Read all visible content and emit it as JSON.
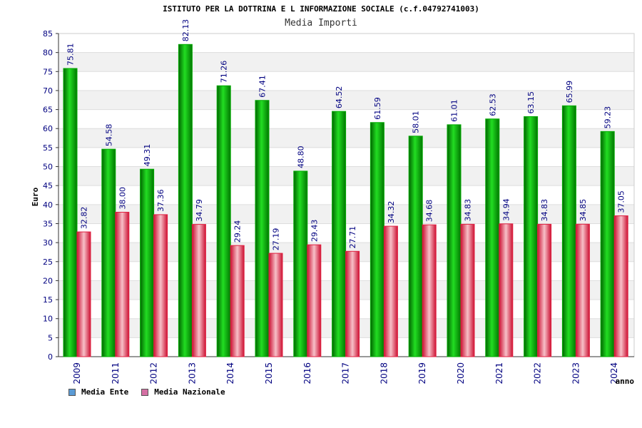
{
  "chart_data": {
    "type": "bar",
    "title": "ISTITUTO PER LA DOTTRINA E L INFORMAZIONE SOCIALE (c.f.04792741003)",
    "subtitle": "Media Importi",
    "xlabel": "anno",
    "ylabel": "Euro",
    "ylim": [
      0,
      85
    ],
    "yticks": [
      0,
      5,
      10,
      15,
      20,
      25,
      30,
      35,
      40,
      45,
      50,
      55,
      60,
      65,
      70,
      75,
      80,
      85
    ],
    "categories": [
      "2009",
      "2011",
      "2012",
      "2013",
      "2014",
      "2015",
      "2016",
      "2017",
      "2018",
      "2019",
      "2020",
      "2021",
      "2022",
      "2023",
      "2024"
    ],
    "series": [
      {
        "name": "Media Ente",
        "color": "#00aa00",
        "legend_color": "#5b9bd5",
        "values": [
          75.81,
          54.58,
          49.31,
          82.13,
          71.26,
          67.41,
          48.8,
          64.52,
          61.59,
          58.01,
          61.01,
          62.53,
          63.15,
          65.99,
          59.23
        ],
        "labels": [
          "75.81",
          "54.58",
          "49.31",
          "82.13",
          "71.26",
          "67.41",
          "48.80",
          "64.52",
          "61.59",
          "58.01",
          "61.01",
          "62.53",
          "63.15",
          "65.99",
          "59.23"
        ]
      },
      {
        "name": "Media Nazionale",
        "color": "#e03030",
        "legend_color": "#d46fa3",
        "values": [
          32.82,
          38.0,
          37.36,
          34.79,
          29.24,
          27.19,
          29.43,
          27.71,
          34.32,
          34.68,
          34.83,
          34.94,
          34.83,
          34.85,
          37.05
        ],
        "labels": [
          "32.82",
          "38.00",
          "37.36",
          "34.79",
          "29.24",
          "27.19",
          "29.43",
          "27.71",
          "34.32",
          "34.68",
          "34.83",
          "34.94",
          "34.83",
          "34.85",
          "37.05"
        ]
      }
    ],
    "grid": true,
    "legend_position": "bottom-left"
  }
}
